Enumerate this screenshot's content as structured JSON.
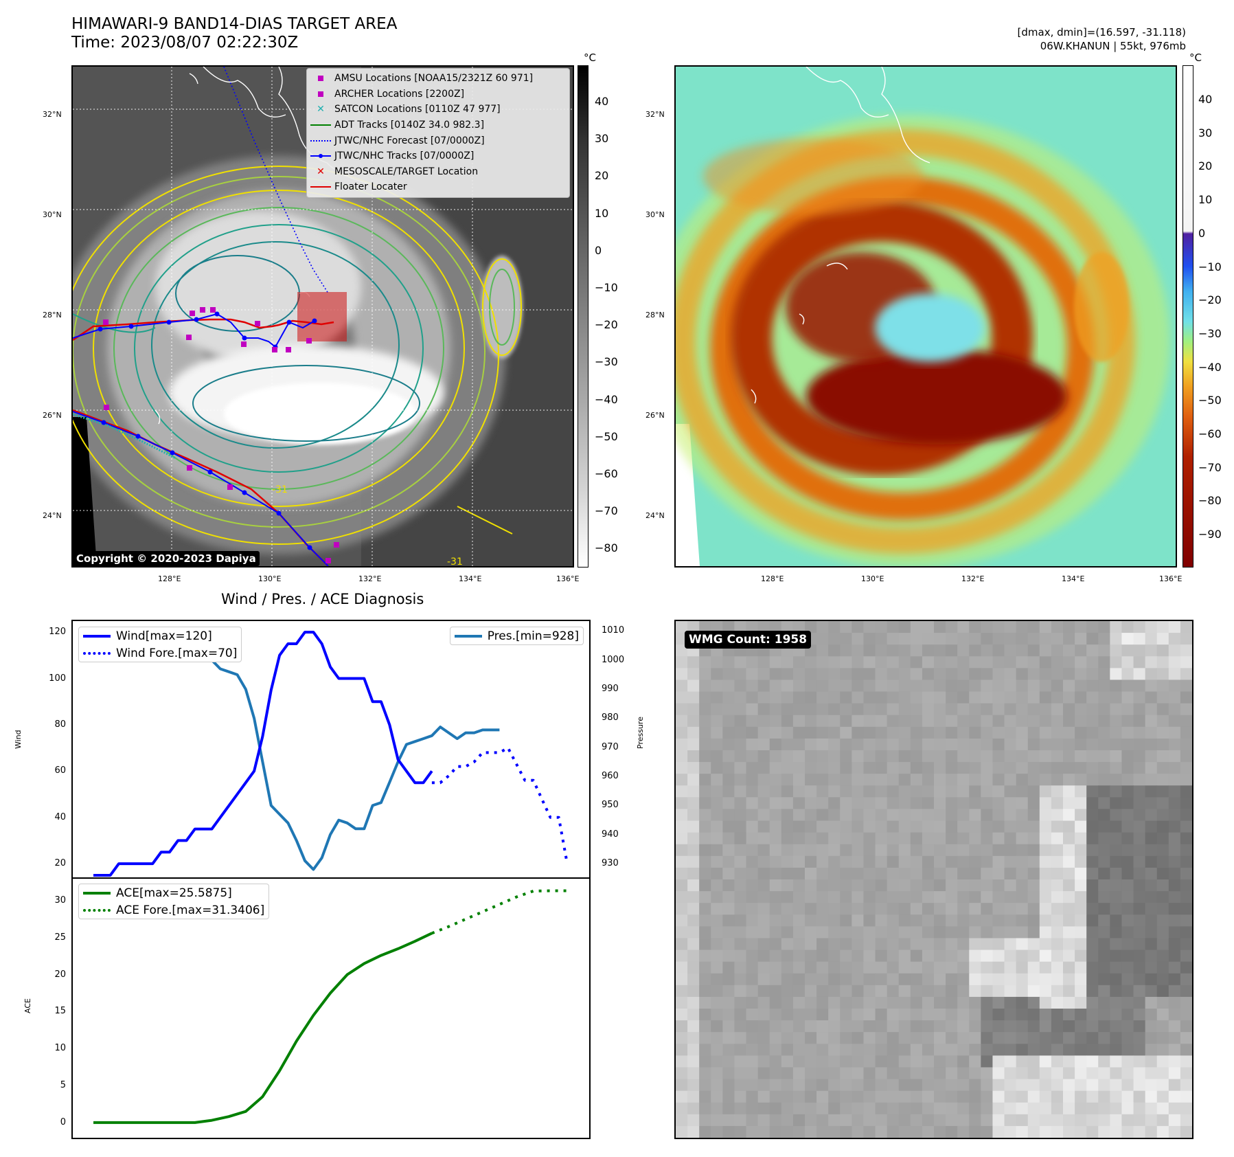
{
  "header": {
    "title_line1": "HIMAWARI-9 BAND14-DIAS TARGET AREA",
    "title_line2": "Time: 2023/08/07 02:22:30Z",
    "dmax_text": "[dmax, dmin]=(16.597, -31.118)",
    "storm_text": "06W.KHANUN | 55kt, 976mb"
  },
  "ir_map": {
    "lat_labels": [
      "32°N",
      "30°N",
      "28°N",
      "26°N",
      "24°N"
    ],
    "lon_labels": [
      "128°E",
      "130°E",
      "132°E",
      "134°E",
      "136°E"
    ],
    "colorbar_unit": "°C",
    "colorbar_ticks": [
      "40",
      "30",
      "20",
      "10",
      "0",
      "−10",
      "−20",
      "−30",
      "−40",
      "−50",
      "−60",
      "−70",
      "−80"
    ],
    "copyright": "Copyright © 2020-2023 Dapiya",
    "contour_label": "-31",
    "legend": [
      {
        "label": "AMSU Locations [NOAA15/2321Z 60 971]",
        "marker": "square",
        "color": "#c000c0"
      },
      {
        "label": "ARCHER Locations [2200Z]",
        "marker": "square",
        "color": "#c000c0"
      },
      {
        "label": "SATCON Locations [0110Z 47 977]",
        "marker": "x",
        "color": "#20b0b0"
      },
      {
        "label": "ADT Tracks [0140Z 34.0 982.3]",
        "marker": "line",
        "color": "#008000"
      },
      {
        "label": "JTWC/NHC Forecast [07/0000Z]",
        "marker": "dotted",
        "color": "#0000ff"
      },
      {
        "label": "JTWC/NHC Tracks [07/0000Z]",
        "marker": "line-dot",
        "color": "#0000ff"
      },
      {
        "label": "MESOSCALE/TARGET Location",
        "marker": "x",
        "color": "#e00000"
      },
      {
        "label": "Floater Locater",
        "marker": "line",
        "color": "#e00000"
      }
    ]
  },
  "color_map": {
    "lat_labels": [
      "32°N",
      "30°N",
      "28°N",
      "26°N",
      "24°N"
    ],
    "lon_labels": [
      "128°E",
      "130°E",
      "132°E",
      "134°E",
      "136°E"
    ],
    "colorbar_unit": "°C",
    "colorbar_ticks": [
      "40",
      "30",
      "20",
      "10",
      "0",
      "−10",
      "−20",
      "−30",
      "−40",
      "−50",
      "−60",
      "−70",
      "−80",
      "−90"
    ]
  },
  "diag": {
    "title": "Wind / Pres. / ACE Diagnosis",
    "wind_ylabel": "Wind",
    "pres_ylabel": "Pressure",
    "ace_ylabel": "ACE",
    "wind_ticks": [
      "120",
      "100",
      "80",
      "60",
      "40",
      "20"
    ],
    "pres_ticks": [
      "1010",
      "1000",
      "990",
      "980",
      "970",
      "960",
      "950",
      "940",
      "930"
    ],
    "ace_ticks": [
      "30",
      "25",
      "20",
      "15",
      "10",
      "5",
      "0"
    ],
    "legend_wind": "Wind[max=120]",
    "legend_wind_fore": "Wind Fore.[max=70]",
    "legend_pres": "Pres.[min=928]",
    "legend_ace": "ACE[max=25.5875]",
    "legend_ace_fore": "ACE Fore.[max=31.3406]"
  },
  "wmg": {
    "label": "WMG Count: 1958"
  },
  "chart_data": [
    {
      "type": "line",
      "title": "Wind / Pres. / ACE Diagnosis",
      "ylabel": "Wind",
      "ylim": [
        15,
        123
      ],
      "x_index_range": [
        0,
        56
      ],
      "series": [
        {
          "name": "Wind[max=120]",
          "color": "#0000ff",
          "style": "solid",
          "axis": "left",
          "x": [
            0,
            1,
            2,
            3,
            4,
            5,
            6,
            7,
            8,
            9,
            10,
            11,
            12,
            13,
            14,
            15,
            16,
            17,
            18,
            19,
            20,
            21,
            22,
            23,
            24,
            25,
            26,
            27,
            28,
            29,
            30,
            31,
            32,
            33,
            34,
            35,
            36,
            37,
            38,
            39,
            40
          ],
          "values": [
            15,
            15,
            15,
            20,
            20,
            20,
            20,
            20,
            25,
            25,
            30,
            30,
            35,
            35,
            35,
            40,
            45,
            50,
            55,
            60,
            75,
            95,
            110,
            115,
            115,
            120,
            120,
            115,
            105,
            100,
            100,
            100,
            100,
            90,
            90,
            80,
            65,
            60,
            55,
            55,
            60
          ]
        },
        {
          "name": "Wind Fore.[max=70]",
          "color": "#0000ff",
          "style": "dotted",
          "axis": "left",
          "x": [
            40,
            41,
            42,
            43,
            44,
            45,
            46,
            47,
            48,
            49,
            50,
            51,
            52,
            53,
            54,
            55,
            56
          ],
          "values": [
            55,
            55,
            58,
            62,
            62,
            64,
            68,
            68,
            68,
            70,
            63,
            56,
            56,
            48,
            40,
            40,
            20
          ]
        },
        {
          "name": "Pres.[min=928]",
          "color": "#1f77b4",
          "style": "solid",
          "axis": "right",
          "ylim": [
            926,
            1012
          ],
          "x": [
            0,
            1,
            2,
            3,
            4,
            5,
            6,
            7,
            8,
            9,
            10,
            11,
            12,
            13,
            14,
            15,
            16,
            17,
            18,
            19,
            20,
            21,
            22,
            23,
            24,
            25,
            26,
            27,
            28,
            29,
            30,
            31,
            32,
            33,
            34,
            35,
            36,
            37,
            38,
            39,
            40,
            41,
            42,
            43,
            44,
            45,
            46,
            47,
            48
          ],
          "values": [
            1005,
            1005,
            1005,
            1006,
            1008,
            1008,
            1007,
            1006,
            1005,
            1005,
            1005,
            1004,
            1003,
            1003,
            1000,
            997,
            996,
            995,
            990,
            980,
            965,
            950,
            947,
            944,
            938,
            931,
            928,
            932,
            940,
            945,
            944,
            942,
            942,
            950,
            951,
            958,
            965,
            971,
            972,
            973,
            974,
            977,
            975,
            973,
            975,
            975,
            976,
            976,
            976
          ]
        }
      ]
    },
    {
      "type": "line",
      "ylabel": "ACE",
      "ylim": [
        -1.5,
        32.5
      ],
      "x_index_range": [
        0,
        56
      ],
      "series": [
        {
          "name": "ACE[max=25.5875]",
          "color": "#008000",
          "style": "solid",
          "x": [
            0,
            4,
            8,
            12,
            14,
            16,
            18,
            20,
            22,
            24,
            26,
            28,
            30,
            32,
            34,
            36,
            38,
            40
          ],
          "values": [
            0,
            0,
            0,
            0,
            0.3,
            0.8,
            1.5,
            3.5,
            7,
            11,
            14.5,
            17.5,
            20,
            21.5,
            22.6,
            23.5,
            24.5,
            25.6
          ]
        },
        {
          "name": "ACE Fore.[max=31.3406]",
          "color": "#008000",
          "style": "dotted",
          "x": [
            40,
            42,
            44,
            46,
            48,
            50,
            52,
            54,
            56
          ],
          "values": [
            25.6,
            26.5,
            27.5,
            28.5,
            29.5,
            30.5,
            31.3,
            31.34,
            31.34
          ]
        }
      ]
    }
  ]
}
